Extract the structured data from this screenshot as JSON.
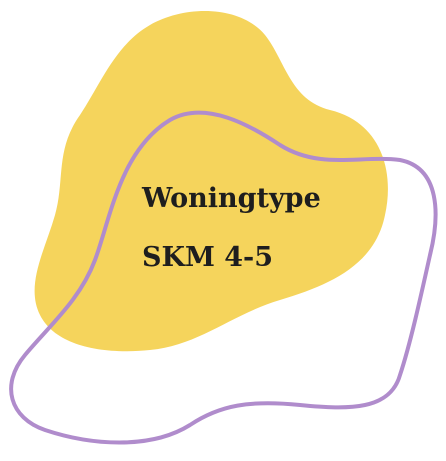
{
  "title": "Woningtype",
  "subtitle": "SKM 4-5"
}
